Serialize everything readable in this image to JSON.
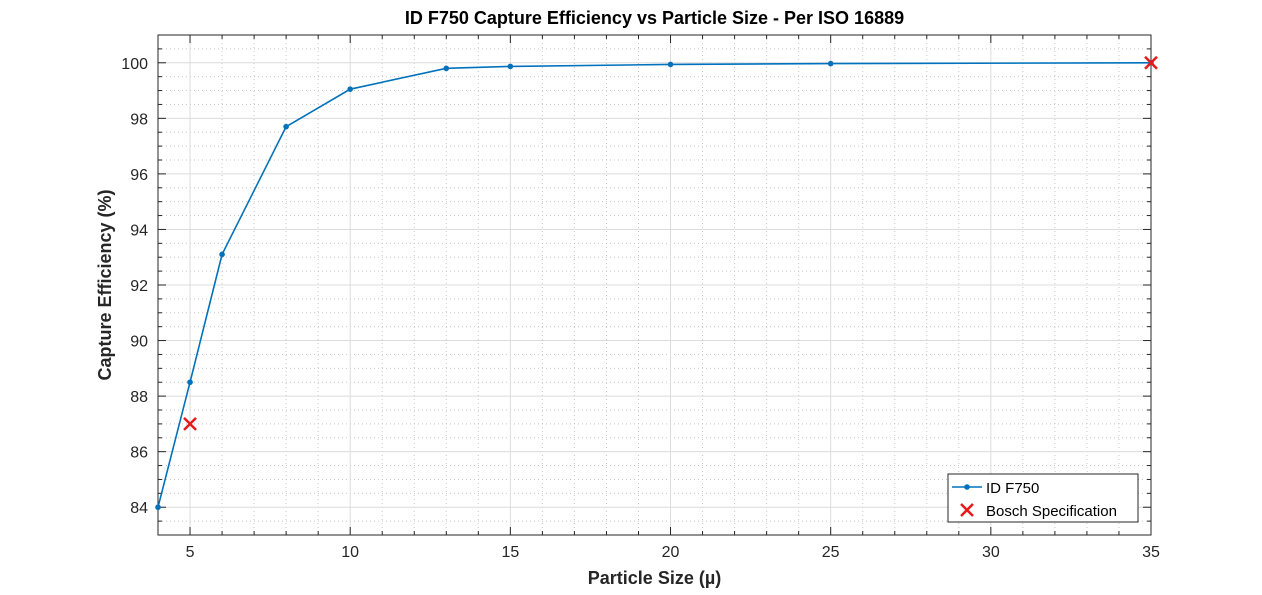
{
  "chart_data": {
    "type": "line",
    "title": "ID F750 Capture Efficiency vs Particle Size - Per ISO 16889",
    "xlabel": "Particle Size (µ)",
    "ylabel": "Capture Efficiency (%)",
    "xlim": [
      4,
      35
    ],
    "ylim": [
      83,
      101
    ],
    "xticks": [
      5,
      10,
      15,
      20,
      25,
      30,
      35
    ],
    "yticks": [
      84,
      86,
      88,
      90,
      92,
      94,
      96,
      98,
      100
    ],
    "grid": true,
    "minor_grid": true,
    "legend_position": "bottom-right",
    "series": [
      {
        "name": "ID F750",
        "style": "line-dot",
        "color": "#0072BD",
        "x": [
          4,
          5,
          6,
          8,
          10,
          13,
          15,
          20,
          25,
          35
        ],
        "y": [
          84.0,
          88.5,
          93.1,
          97.7,
          99.05,
          99.8,
          99.87,
          99.94,
          99.97,
          100.0
        ]
      },
      {
        "name": "Bosch Specification",
        "style": "x-marker",
        "color": "#E41A1C",
        "x": [
          5,
          35
        ],
        "y": [
          87,
          100
        ]
      }
    ]
  }
}
